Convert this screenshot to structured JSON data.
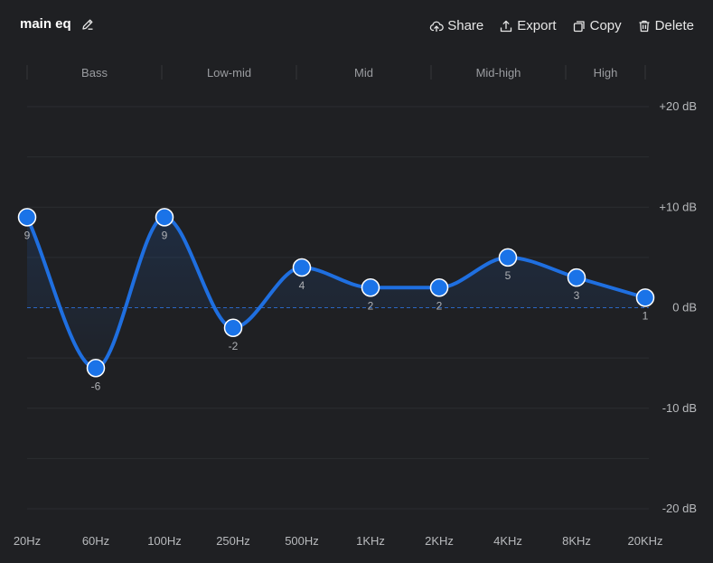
{
  "preset": {
    "name": "main eq"
  },
  "toolbar": {
    "share_label": "Share",
    "export_label": "Export",
    "copy_label": "Copy",
    "delete_label": "Delete"
  },
  "bands": [
    "Bass",
    "Low-mid",
    "Mid",
    "Mid-high",
    "High"
  ],
  "colors": {
    "background": "#1f2023",
    "curve": "#1f6fe0",
    "point": "#1a73e8",
    "zero_line": "#2a66c2"
  },
  "chart_data": {
    "type": "line",
    "x": [
      "20Hz",
      "60Hz",
      "100Hz",
      "250Hz",
      "500Hz",
      "1KHz",
      "2KHz",
      "4KHz",
      "8KHz",
      "20KHz"
    ],
    "values": [
      9,
      -6,
      9,
      -2,
      4,
      2,
      2,
      5,
      3,
      1
    ],
    "y_ticks": [
      "+20 dB",
      "+10 dB",
      "0 dB",
      "-10 dB",
      "-20 dB"
    ],
    "ylim": [
      -20,
      20
    ],
    "grid": true
  }
}
